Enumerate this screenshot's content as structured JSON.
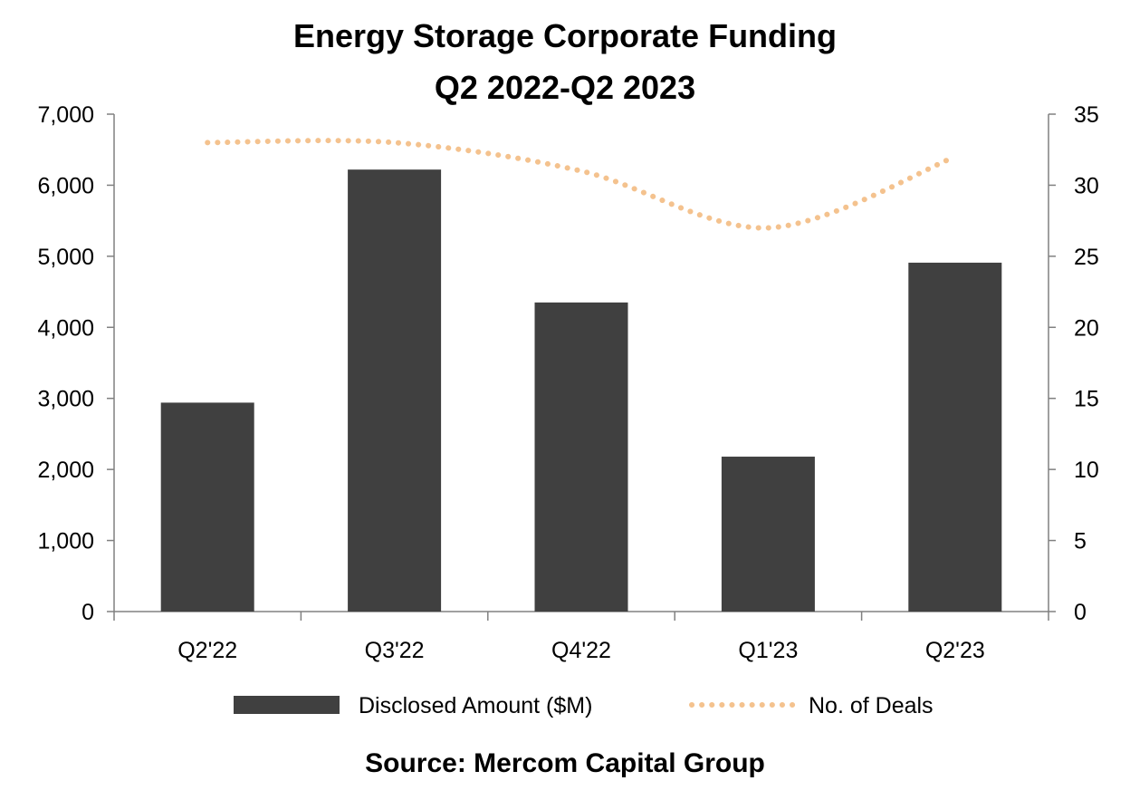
{
  "chart_data": {
    "type": "bar",
    "title": "Energy Storage Corporate Funding",
    "subtitle": "Q2 2022-Q2 2023",
    "categories": [
      "Q2'22",
      "Q3'22",
      "Q4'22",
      "Q1'23",
      "Q2'23"
    ],
    "series": [
      {
        "name": "Disclosed Amount ($M)",
        "type": "bar",
        "axis": "left",
        "color": "#404040",
        "values": [
          2940,
          6220,
          4350,
          2180,
          4910
        ]
      },
      {
        "name": "No. of Deals",
        "type": "line",
        "style": "dotted",
        "axis": "right",
        "color": "#F4C28E",
        "values": [
          33,
          33,
          31,
          27,
          32
        ]
      }
    ],
    "y_left": {
      "min": 0,
      "max": 7000,
      "ticks": [
        0,
        1000,
        2000,
        3000,
        4000,
        5000,
        6000,
        7000
      ],
      "tick_labels": [
        "0",
        "1,000",
        "2,000",
        "3,000",
        "4,000",
        "5,000",
        "6,000",
        "7,000"
      ]
    },
    "y_right": {
      "min": 0,
      "max": 35,
      "ticks": [
        0,
        5,
        10,
        15,
        20,
        25,
        30,
        35
      ],
      "tick_labels": [
        "0",
        "5",
        "10",
        "15",
        "20",
        "25",
        "30",
        "35"
      ]
    },
    "grid": false,
    "legend": {
      "position": "bottom",
      "entries": [
        "Disclosed Amount ($M)",
        "No. of Deals"
      ]
    },
    "source": "Source: Mercom Capital Group"
  }
}
